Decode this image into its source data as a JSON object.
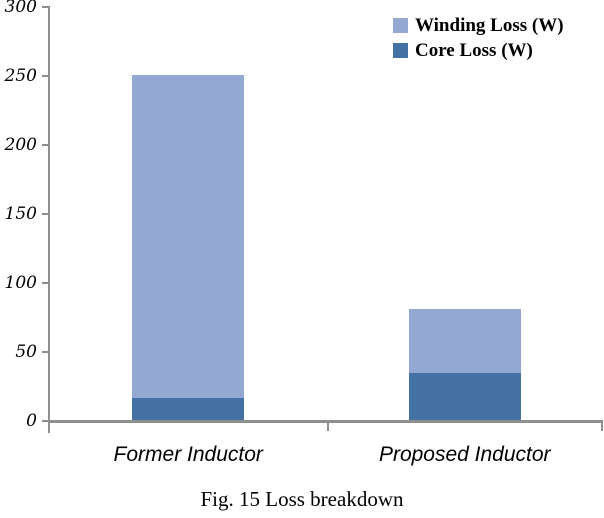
{
  "figure": {
    "caption": "Fig. 15 Loss breakdown"
  },
  "colors": {
    "axis": "#8f8f8f",
    "winding": "#93a9d1",
    "core": "#4472a4",
    "text": "#000000"
  },
  "chart_data": {
    "type": "bar",
    "stacked": true,
    "title": "",
    "xlabel": "",
    "ylabel": "",
    "categories": [
      "Former Inductor",
      "Proposed Inductor"
    ],
    "series": [
      {
        "name": "Winding Loss (W)",
        "color": "#93a9d1",
        "values": [
          234,
          46
        ]
      },
      {
        "name": "Core Loss (W)",
        "color": "#4472a4",
        "values": [
          17,
          35
        ]
      }
    ],
    "totals": [
      251,
      81
    ],
    "ylim": [
      0,
      300
    ],
    "ytick_step": 50,
    "yticks": [
      0,
      50,
      100,
      150,
      200,
      250,
      300
    ],
    "grid": false,
    "legend_position": "top-right"
  }
}
